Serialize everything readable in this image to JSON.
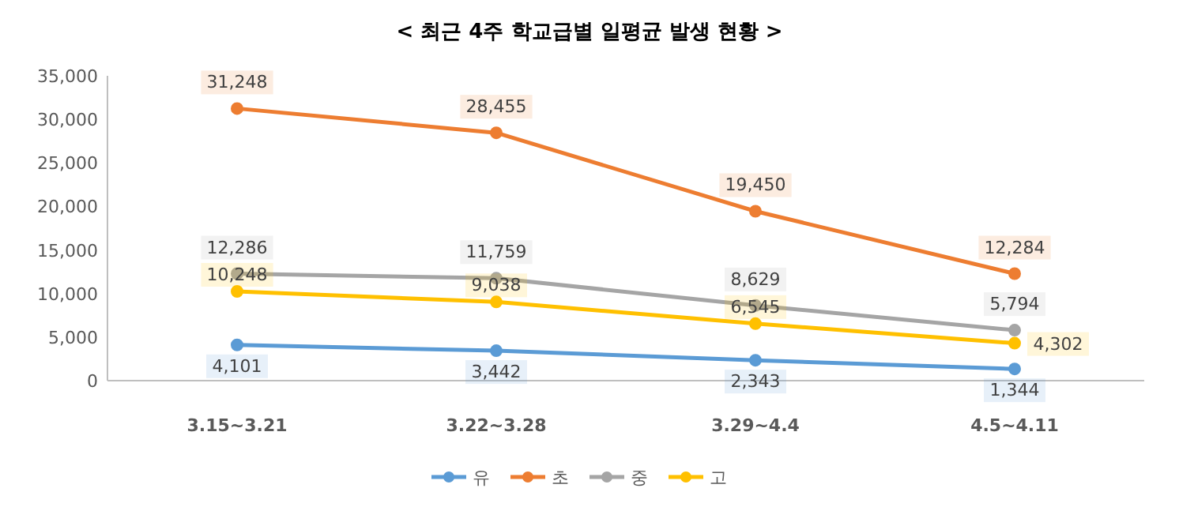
{
  "chart_data": {
    "type": "line",
    "title": "< 최근 4주 학교급별 일평균 발생 현황 >",
    "categories": [
      "3.15~3.21",
      "3.22~3.28",
      "3.29~4.4",
      "4.5~4.11"
    ],
    "series": [
      {
        "name": "유",
        "color": "#5b9bd5",
        "values": [
          4101,
          3442,
          2343,
          1344
        ],
        "value_labels": [
          "4,101",
          "3,442",
          "2,343",
          "1,344"
        ]
      },
      {
        "name": "초",
        "color": "#ed7d31",
        "values": [
          31248,
          28455,
          19450,
          12284
        ],
        "value_labels": [
          "31,248",
          "28,455",
          "19,450",
          "12,284"
        ]
      },
      {
        "name": "중",
        "color": "#a5a5a5",
        "values": [
          12286,
          11759,
          8629,
          5794
        ],
        "value_labels": [
          "12,286",
          "11,759",
          "8,629",
          "5,794"
        ]
      },
      {
        "name": "고",
        "color": "#ffc000",
        "values": [
          10248,
          9038,
          6545,
          4302
        ],
        "value_labels": [
          "10,248",
          "9,038",
          "6,545",
          "4,302"
        ]
      }
    ],
    "ylim": [
      0,
      35000
    ],
    "yticks": [
      {
        "value": 0,
        "label": "0"
      },
      {
        "value": 5000,
        "label": "5,000"
      },
      {
        "value": 10000,
        "label": "10,000"
      },
      {
        "value": 15000,
        "label": "15,000"
      },
      {
        "value": 20000,
        "label": "20,000"
      },
      {
        "value": 25000,
        "label": "25,000"
      },
      {
        "value": 30000,
        "label": "30,000"
      },
      {
        "value": 35000,
        "label": "35,000"
      }
    ],
    "marker": "circle",
    "legend": "bottom",
    "line_style": "solid"
  }
}
